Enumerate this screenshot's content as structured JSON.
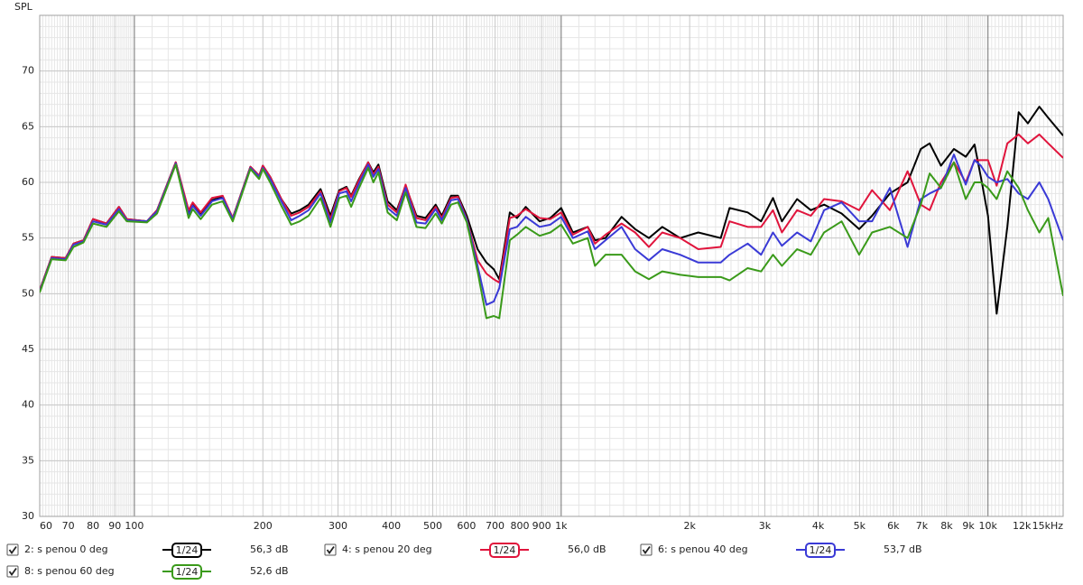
{
  "chart_data": {
    "type": "line",
    "y_label": "SPL",
    "xscale": "log",
    "grid": true,
    "xlim": [
      60,
      15000
    ],
    "ylim": [
      30,
      75
    ],
    "yticks": [
      30,
      35,
      40,
      45,
      50,
      55,
      60,
      65,
      70
    ],
    "xticks": [
      60,
      70,
      80,
      90,
      100,
      200,
      300,
      400,
      500,
      600,
      700,
      800,
      900,
      {
        "value": 1000,
        "label": "1k"
      },
      {
        "value": 2000,
        "label": "2k"
      },
      {
        "value": 3000,
        "label": "3k"
      },
      {
        "value": 4000,
        "label": "4k"
      },
      {
        "value": 5000,
        "label": "5k"
      },
      {
        "value": 6000,
        "label": "6k"
      },
      {
        "value": 7000,
        "label": "7k"
      },
      {
        "value": 8000,
        "label": "8k"
      },
      {
        "value": 9000,
        "label": "9k"
      },
      {
        "value": 10000,
        "label": "10k"
      },
      {
        "value": 12000,
        "label": "12k"
      },
      {
        "value": 15000,
        "label": "15kHz"
      }
    ],
    "x": [
      60,
      64,
      69,
      72,
      76,
      80,
      86,
      92,
      96,
      107,
      113,
      125,
      134,
      137,
      143,
      152,
      161,
      170,
      187,
      196,
      200,
      208,
      221,
      233,
      244,
      256,
      273,
      288,
      302,
      314,
      322,
      336,
      353,
      363,
      373,
      392,
      412,
      432,
      458,
      481,
      508,
      525,
      552,
      573,
      601,
      637,
      668,
      695,
      716,
      758,
      788,
      826,
      890,
      943,
      1000,
      1065,
      1154,
      1200,
      1270,
      1385,
      1490,
      1605,
      1725,
      1900,
      2095,
      2365,
      2480,
      2735,
      2940,
      3135,
      3290,
      3570,
      3845,
      4130,
      4540,
      4990,
      5350,
      5890,
      6480,
      6960,
      7300,
      7760,
      8320,
      8870,
      9300,
      9620,
      10000,
      10480,
      11100,
      11800,
      12400,
      13190,
      13840,
      15000
    ],
    "series": [
      {
        "name": "2: s penou 0 deg",
        "color": "#000000",
        "smoothing": "1/24",
        "level": "56,3 dB",
        "values": [
          50.3,
          53.3,
          53.2,
          54.5,
          54.8,
          56.7,
          56.3,
          57.8,
          56.7,
          56.5,
          57.5,
          61.8,
          57.3,
          58.1,
          57.2,
          58.4,
          58.7,
          56.8,
          61.4,
          60.6,
          61.5,
          60.5,
          58.5,
          57.2,
          57.5,
          58.0,
          59.4,
          57.0,
          59.3,
          59.6,
          58.8,
          60.3,
          61.8,
          60.9,
          61.6,
          58.3,
          57.5,
          59.7,
          57.0,
          56.8,
          58.0,
          57.0,
          58.8,
          58.8,
          57.0,
          54.0,
          52.8,
          52.2,
          51.3,
          57.3,
          56.8,
          57.8,
          56.5,
          56.8,
          57.7,
          55.5,
          56.0,
          54.8,
          55.0,
          56.9,
          55.8,
          55.0,
          56.0,
          55.0,
          55.5,
          55.0,
          57.7,
          57.3,
          56.5,
          58.6,
          56.5,
          58.5,
          57.5,
          58.0,
          57.2,
          55.8,
          57.0,
          59.0,
          60.0,
          63.0,
          63.5,
          61.5,
          63.0,
          62.3,
          63.4,
          60.5,
          57.0,
          48.2,
          56.0,
          66.3,
          65.3,
          66.8,
          65.8,
          64.2
        ]
      },
      {
        "name": "4: s penou 20 deg",
        "color": "#e0143c",
        "smoothing": "1/24",
        "level": "56,0 dB",
        "values": [
          50.3,
          53.3,
          53.2,
          54.5,
          54.8,
          56.7,
          56.3,
          57.8,
          56.7,
          56.5,
          57.5,
          61.8,
          57.5,
          58.2,
          57.3,
          58.6,
          58.8,
          56.8,
          61.4,
          60.6,
          61.5,
          60.5,
          58.5,
          57.0,
          57.3,
          57.8,
          59.2,
          56.7,
          59.2,
          59.5,
          58.7,
          60.2,
          61.8,
          60.7,
          61.4,
          58.0,
          57.3,
          59.8,
          56.8,
          56.6,
          57.8,
          56.8,
          58.6,
          58.7,
          56.7,
          53.0,
          51.8,
          51.3,
          51.0,
          56.8,
          57.0,
          57.6,
          56.8,
          56.7,
          57.3,
          55.3,
          56.0,
          54.5,
          55.3,
          56.3,
          55.5,
          54.2,
          55.5,
          55.0,
          54.0,
          54.2,
          56.5,
          56.0,
          56.0,
          57.5,
          55.5,
          57.5,
          57.0,
          58.5,
          58.3,
          57.5,
          59.3,
          57.5,
          61.0,
          58.0,
          57.5,
          60.0,
          61.8,
          60.0,
          62.0,
          62.0,
          62.0,
          59.7,
          63.5,
          64.3,
          63.5,
          64.3,
          63.5,
          62.2
        ]
      },
      {
        "name": "6: s penou 40 deg",
        "color": "#3a3ad6",
        "smoothing": "1/24",
        "level": "53,7 dB",
        "values": [
          50.2,
          53.2,
          53.1,
          54.4,
          54.7,
          56.5,
          56.2,
          57.6,
          56.6,
          56.5,
          57.4,
          61.7,
          57.1,
          57.9,
          57.0,
          58.3,
          58.6,
          56.7,
          61.3,
          60.5,
          61.3,
          60.3,
          58.3,
          56.6,
          57.0,
          57.5,
          59.0,
          56.4,
          59.0,
          59.2,
          58.3,
          59.9,
          61.6,
          60.5,
          61.2,
          57.7,
          57.0,
          59.5,
          56.4,
          56.3,
          57.6,
          56.6,
          58.4,
          58.5,
          56.6,
          52.5,
          49.0,
          49.3,
          50.5,
          55.8,
          56.0,
          56.9,
          56.0,
          56.2,
          56.9,
          55.0,
          55.6,
          54.0,
          54.8,
          56.0,
          54.0,
          53.0,
          54.0,
          53.5,
          52.8,
          52.8,
          53.5,
          54.5,
          53.5,
          55.5,
          54.3,
          55.5,
          54.7,
          57.5,
          58.2,
          56.5,
          56.5,
          59.5,
          54.2,
          58.5,
          59.0,
          59.5,
          62.5,
          59.8,
          62.0,
          61.5,
          60.5,
          60.0,
          60.3,
          59.0,
          58.5,
          60.0,
          58.5,
          54.8
        ]
      },
      {
        "name": "8: s penou 60 deg",
        "color": "#3a9a1a",
        "smoothing": "1/24",
        "level": "52,6 dB",
        "values": [
          50.1,
          53.1,
          53.0,
          54.2,
          54.6,
          56.3,
          56.0,
          57.4,
          56.5,
          56.4,
          57.2,
          61.6,
          56.8,
          57.6,
          56.7,
          58.0,
          58.3,
          56.5,
          61.2,
          60.3,
          61.2,
          60.0,
          57.9,
          56.2,
          56.5,
          57.0,
          58.6,
          56.0,
          58.6,
          58.8,
          57.8,
          59.5,
          61.3,
          60.0,
          60.9,
          57.3,
          56.6,
          59.1,
          56.0,
          55.9,
          57.2,
          56.3,
          58.0,
          58.2,
          56.4,
          52.0,
          47.8,
          48.0,
          47.8,
          54.8,
          55.3,
          56.0,
          55.2,
          55.5,
          56.2,
          54.5,
          55.0,
          52.5,
          53.5,
          53.5,
          52.0,
          51.3,
          52.0,
          51.7,
          51.5,
          51.5,
          51.2,
          52.3,
          52.0,
          53.5,
          52.5,
          54.0,
          53.5,
          55.5,
          56.5,
          53.5,
          55.5,
          56.0,
          55.0,
          58.0,
          60.8,
          59.5,
          61.8,
          58.5,
          60.0,
          60.0,
          59.5,
          58.5,
          61.0,
          59.5,
          57.5,
          55.5,
          56.8,
          49.8
        ]
      }
    ]
  }
}
